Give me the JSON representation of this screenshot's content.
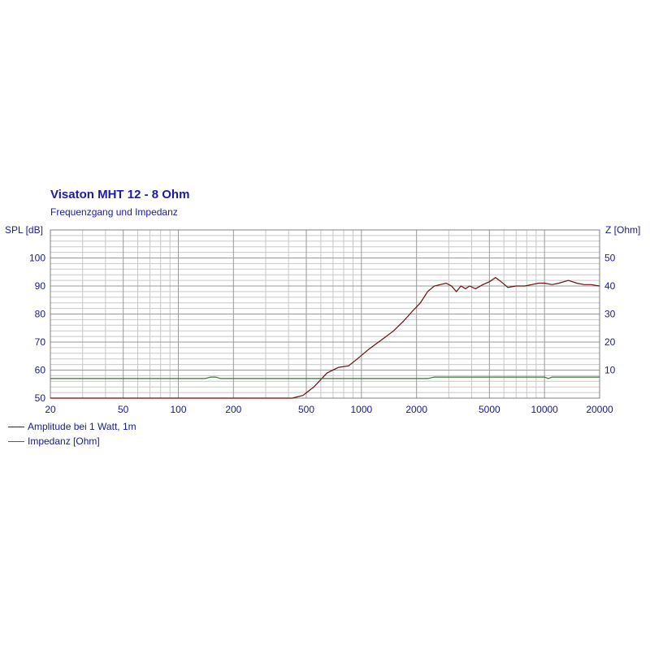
{
  "chart_data": {
    "type": "line",
    "title": "Visaton MHT 12 - 8 Ohm",
    "subtitle": "Frequenzgang und Impedanz",
    "ylabel_left": "SPL [dB]",
    "ylabel_right": "Z [Ohm]",
    "x_scale": "log",
    "xlim": [
      20,
      20000
    ],
    "ylim_left": [
      50,
      110
    ],
    "ylim_right": [
      0,
      60
    ],
    "x_ticks": [
      20,
      50,
      100,
      200,
      500,
      1000,
      2000,
      5000,
      10000,
      20000
    ],
    "y_ticks_left": [
      50,
      60,
      70,
      80,
      90,
      100
    ],
    "y_ticks_right": [
      10,
      20,
      30,
      40,
      50
    ],
    "grid": true,
    "legend_position": "bottom-left",
    "series": [
      {
        "name": "Amplitude bei 1 Watt, 1m",
        "axis": "left",
        "color": "#6b0f0f",
        "x": [
          20,
          300,
          420,
          480,
          550,
          650,
          750,
          850,
          950,
          1100,
          1300,
          1500,
          1700,
          1900,
          2100,
          2300,
          2500,
          2700,
          2900,
          3100,
          3300,
          3500,
          3700,
          3900,
          4200,
          4600,
          5000,
          5400,
          5800,
          6300,
          7000,
          7800,
          8500,
          9300,
          10000,
          11000,
          12000,
          13500,
          15000,
          16500,
          18000,
          20000
        ],
        "y": [
          50,
          50,
          50,
          51,
          54,
          59,
          61,
          61.5,
          64,
          67.5,
          71,
          74,
          77.5,
          81,
          84,
          88,
          90,
          90.5,
          91,
          90,
          88,
          90,
          89,
          90,
          89,
          90.5,
          91.5,
          93,
          91.5,
          89.5,
          90,
          90,
          90.5,
          91,
          91,
          90.5,
          91,
          92,
          91,
          90.5,
          90.5,
          90
        ]
      },
      {
        "name": "Impedanz [Ohm]",
        "axis": "right",
        "color": "#2b7a2b",
        "x": [
          20,
          140,
          150,
          160,
          170,
          500,
          1000,
          2300,
          2500,
          5000,
          10000,
          10500,
          11000,
          20000
        ],
        "y": [
          7,
          7,
          7.5,
          7.5,
          7,
          7,
          7,
          7,
          7.5,
          7.5,
          7.5,
          7,
          7.5,
          7.5
        ]
      }
    ]
  }
}
